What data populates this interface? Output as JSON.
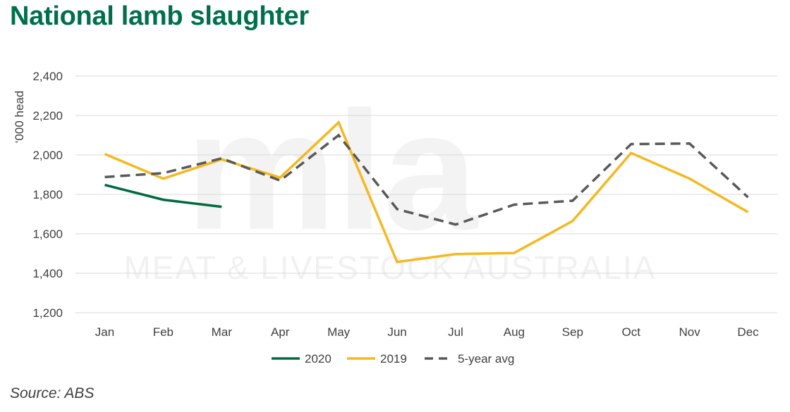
{
  "title": "National lamb slaughter",
  "source": "Source: ABS",
  "watermark": {
    "logo": "mla",
    "text": "MEAT & LIVESTOCK AUSTRALIA"
  },
  "colors": {
    "title": "#00704a",
    "series_2020": "#006b3f",
    "series_2019": "#f5b820",
    "series_5yr": "#595959",
    "grid": "#d9d9d9"
  },
  "chart_data": {
    "type": "line",
    "ylabel": "‘000 head",
    "xlabel": "",
    "ylim": [
      1200,
      2400
    ],
    "yticks": [
      1200,
      1400,
      1600,
      1800,
      2000,
      2200,
      2400
    ],
    "ytick_labels": [
      "1,200",
      "1,400",
      "1,600",
      "1,800",
      "2,000",
      "2,200",
      "2,400"
    ],
    "categories": [
      "Jan",
      "Feb",
      "Mar",
      "Apr",
      "May",
      "Jun",
      "Jul",
      "Aug",
      "Sep",
      "Oct",
      "Nov",
      "Dec"
    ],
    "grid": true,
    "legend_position": "bottom",
    "series": [
      {
        "name": "2020",
        "style": "solid",
        "color": "#006b3f",
        "values": [
          1848,
          1773,
          1737,
          null,
          null,
          null,
          null,
          null,
          null,
          null,
          null,
          null
        ]
      },
      {
        "name": "2019",
        "style": "solid",
        "color": "#f5b820",
        "values": [
          2005,
          1880,
          1978,
          1885,
          2165,
          1457,
          1497,
          1503,
          1665,
          2010,
          1880,
          1710
        ]
      },
      {
        "name": "5-year avg",
        "style": "dashed",
        "color": "#595959",
        "values": [
          1888,
          1908,
          1983,
          1870,
          2100,
          1725,
          1647,
          1748,
          1768,
          2055,
          2058,
          1785
        ]
      }
    ]
  }
}
